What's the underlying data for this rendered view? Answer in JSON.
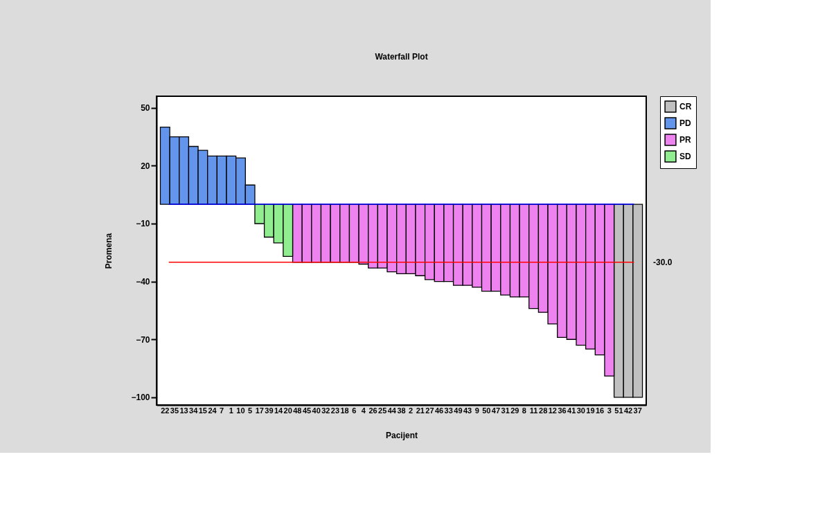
{
  "chart_data": {
    "type": "bar",
    "title": "Waterfall Plot",
    "xlabel": "Pacijent",
    "ylabel": "Promena",
    "categories": [
      "22",
      "35",
      "13",
      "34",
      "15",
      "24",
      "7",
      "1",
      "10",
      "5",
      "17",
      "39",
      "14",
      "20",
      "48",
      "45",
      "40",
      "32",
      "23",
      "18",
      "6",
      "4",
      "26",
      "25",
      "44",
      "38",
      "2",
      "21",
      "27",
      "46",
      "33",
      "49",
      "43",
      "9",
      "50",
      "47",
      "31",
      "29",
      "8",
      "11",
      "28",
      "12",
      "36",
      "41",
      "30",
      "19",
      "16",
      "3",
      "51",
      "42",
      "37"
    ],
    "series": [
      {
        "name": "CR",
        "color": "#c0c0c0",
        "values": [
          null,
          null,
          null,
          null,
          null,
          null,
          null,
          null,
          null,
          null,
          null,
          null,
          null,
          null,
          null,
          null,
          null,
          null,
          null,
          null,
          null,
          null,
          null,
          null,
          null,
          null,
          null,
          null,
          null,
          null,
          null,
          null,
          null,
          null,
          null,
          null,
          null,
          null,
          null,
          null,
          null,
          null,
          null,
          null,
          null,
          null,
          null,
          null,
          -100,
          -100,
          -100
        ]
      },
      {
        "name": "PD",
        "color": "#6495ed",
        "values": [
          40,
          35,
          35,
          30,
          28,
          25,
          25,
          25,
          24,
          10,
          null,
          null,
          null,
          null,
          null,
          null,
          null,
          null,
          null,
          null,
          null,
          null,
          null,
          null,
          null,
          null,
          null,
          null,
          null,
          null,
          null,
          null,
          null,
          null,
          null,
          null,
          null,
          null,
          null,
          null,
          null,
          null,
          null,
          null,
          null,
          null,
          null,
          null,
          null,
          null,
          null
        ]
      },
      {
        "name": "PR",
        "color": "#ee82ee",
        "values": [
          null,
          null,
          null,
          null,
          null,
          null,
          null,
          null,
          null,
          null,
          null,
          null,
          null,
          null,
          -30,
          -30,
          -30,
          -30,
          -30,
          -30,
          -30,
          -31,
          -33,
          -33,
          -35,
          -36,
          -36,
          -37,
          -39,
          -40,
          -40,
          -42,
          -42,
          -43,
          -45,
          -45,
          -47,
          -48,
          -48,
          -54,
          -56,
          -62,
          -69,
          -70,
          -73,
          -75,
          -78,
          -89,
          null,
          null,
          null
        ]
      },
      {
        "name": "SD",
        "color": "#90ee90",
        "values": [
          null,
          null,
          null,
          null,
          null,
          null,
          null,
          null,
          null,
          null,
          -10,
          -17,
          -20,
          -27,
          null,
          null,
          null,
          null,
          null,
          null,
          null,
          null,
          null,
          null,
          null,
          null,
          null,
          null,
          null,
          null,
          null,
          null,
          null,
          null,
          null,
          null,
          null,
          null,
          null,
          null,
          null,
          null,
          null,
          null,
          null,
          null,
          null,
          null,
          null,
          null,
          null
        ]
      }
    ],
    "ylim": [
      -104,
      56
    ],
    "yticks": [
      50,
      20,
      -10,
      -40,
      -70,
      -100
    ],
    "ref_lines": [
      {
        "axis": "y",
        "value": 0,
        "color": "#0000ff"
      },
      {
        "axis": "y",
        "value": -30,
        "label": "-30.0",
        "color": "#ff0000"
      }
    ],
    "legend": "top right",
    "grid": false
  }
}
